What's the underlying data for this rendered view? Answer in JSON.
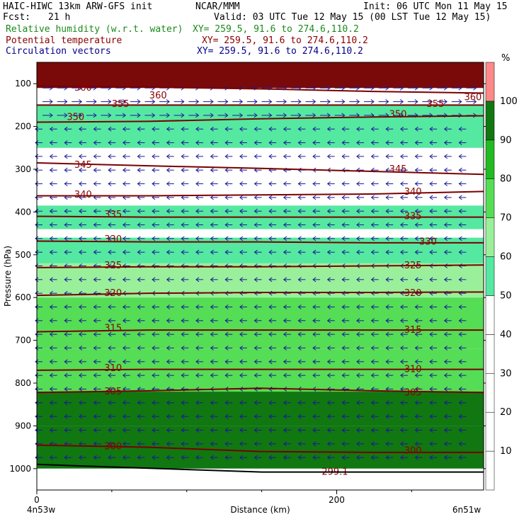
{
  "header": {
    "model": "HAIC-HIWC 13km ARW-GFS init",
    "org": "NCAR/MMM",
    "init": "Init: 06 UTC Mon 11 May 15",
    "fcst_label": "Fcst:",
    "fcst_value": "21 h",
    "valid": "Valid: 03 UTC Tue 12 May 15 (00 LST Tue 12 May 15)"
  },
  "fields": [
    {
      "label": "Relative humidity (w.r.t. water)",
      "xy": "XY= 259.5, 91.6 to 274.6,110.2",
      "color": "#1a8a1a"
    },
    {
      "label": "Potential temperature",
      "xy": "XY= 259.5, 91.6 to 274.6,110.2",
      "color": "#8b0000"
    },
    {
      "label": "Circulation vectors",
      "xy": "XY= 259.5, 91.6 to 274.6,110.2",
      "color": "#00008b"
    }
  ],
  "chart_data": {
    "type": "heatmap",
    "xlabel": "Distance (km)",
    "ylabel": "Pressure (hPa)",
    "x_ticks": [
      0,
      200
    ],
    "xlim": [
      0,
      298
    ],
    "left_label": "4n53w",
    "right_label": "6n51w",
    "y_ticks": [
      100,
      200,
      300,
      400,
      500,
      600,
      700,
      800,
      900,
      1000
    ],
    "ylim": [
      1050,
      50
    ],
    "colorbar": {
      "unit": "%",
      "levels": [
        10,
        20,
        30,
        40,
        50,
        60,
        70,
        80,
        90,
        100
      ],
      "colors": [
        "#ffffff",
        "#ffffff",
        "#ffffff",
        "#ffffff",
        "#ffffff",
        "#55e8a0",
        "#9af09a",
        "#55dd55",
        "#22bb22",
        "#117711",
        "#ff8888"
      ]
    },
    "theta_contours": [
      {
        "label": "360",
        "p": [
          105,
          108,
          112,
          118,
          122
        ],
        "labels_at": [
          [
            25,
            110
          ],
          [
            75,
            128
          ],
          [
            285,
            132
          ]
        ]
      },
      {
        "label": "355",
        "p": [
          150,
          150,
          150,
          150,
          150
        ],
        "labels_at": [
          [
            50,
            148
          ],
          [
            260,
            148
          ]
        ]
      },
      {
        "label": "350",
        "p": [
          190,
          188,
          182,
          178,
          175
        ],
        "labels_at": [
          [
            20,
            178
          ],
          [
            235,
            172
          ]
        ]
      },
      {
        "label": "345",
        "p": [
          285,
          292,
          298,
          305,
          312
        ],
        "labels_at": [
          [
            25,
            290
          ],
          [
            235,
            300
          ]
        ]
      },
      {
        "label": "340",
        "p": [
          362,
          362,
          360,
          358,
          352
        ],
        "labels_at": [
          [
            25,
            360
          ],
          [
            245,
            353
          ]
        ]
      },
      {
        "label": "335",
        "p": [
          410,
          412,
          412,
          412,
          412
        ],
        "labels_at": [
          [
            45,
            406
          ],
          [
            245,
            410
          ]
        ]
      },
      {
        "label": "330",
        "p": [
          468,
          470,
          470,
          472,
          472
        ],
        "labels_at": [
          [
            45,
            464
          ],
          [
            255,
            470
          ]
        ]
      },
      {
        "label": "325",
        "p": [
          530,
          528,
          528,
          526,
          524
        ],
        "labels_at": [
          [
            45,
            525
          ],
          [
            245,
            525
          ]
        ]
      },
      {
        "label": "320",
        "p": [
          595,
          590,
          588,
          588,
          587
        ],
        "labels_at": [
          [
            45,
            590
          ],
          [
            245,
            590
          ]
        ]
      },
      {
        "label": "315",
        "p": [
          680,
          676,
          676,
          676,
          676
        ],
        "labels_at": [
          [
            45,
            672
          ],
          [
            245,
            676
          ]
        ]
      },
      {
        "label": "310",
        "p": [
          770,
          768,
          768,
          768,
          768
        ],
        "labels_at": [
          [
            45,
            765
          ],
          [
            245,
            768
          ]
        ]
      },
      {
        "label": "305",
        "p": [
          822,
          818,
          812,
          818,
          822
        ],
        "labels_at": [
          [
            45,
            820
          ],
          [
            245,
            822
          ]
        ]
      },
      {
        "label": "300",
        "p": [
          945,
          950,
          960,
          962,
          962
        ],
        "labels_at": [
          [
            45,
            948
          ],
          [
            245,
            958
          ]
        ]
      }
    ],
    "surface_label": "299.1",
    "rh_bands": [
      {
        "from": 60,
        "to": 100,
        "rh": 100
      },
      {
        "from": 150,
        "to": 170,
        "rh": 50
      },
      {
        "from": 170,
        "to": 250,
        "rh": 55
      },
      {
        "from": 385,
        "to": 440,
        "rh": 55
      },
      {
        "from": 460,
        "to": 520,
        "rh": 55
      },
      {
        "from": 520,
        "to": 600,
        "rh": 65
      },
      {
        "from": 600,
        "to": 720,
        "rh": 75
      },
      {
        "from": 720,
        "to": 820,
        "rh": 75
      },
      {
        "from": 820,
        "to": 900,
        "rh": 90
      },
      {
        "from": 900,
        "to": 1000,
        "rh": 95
      }
    ]
  }
}
